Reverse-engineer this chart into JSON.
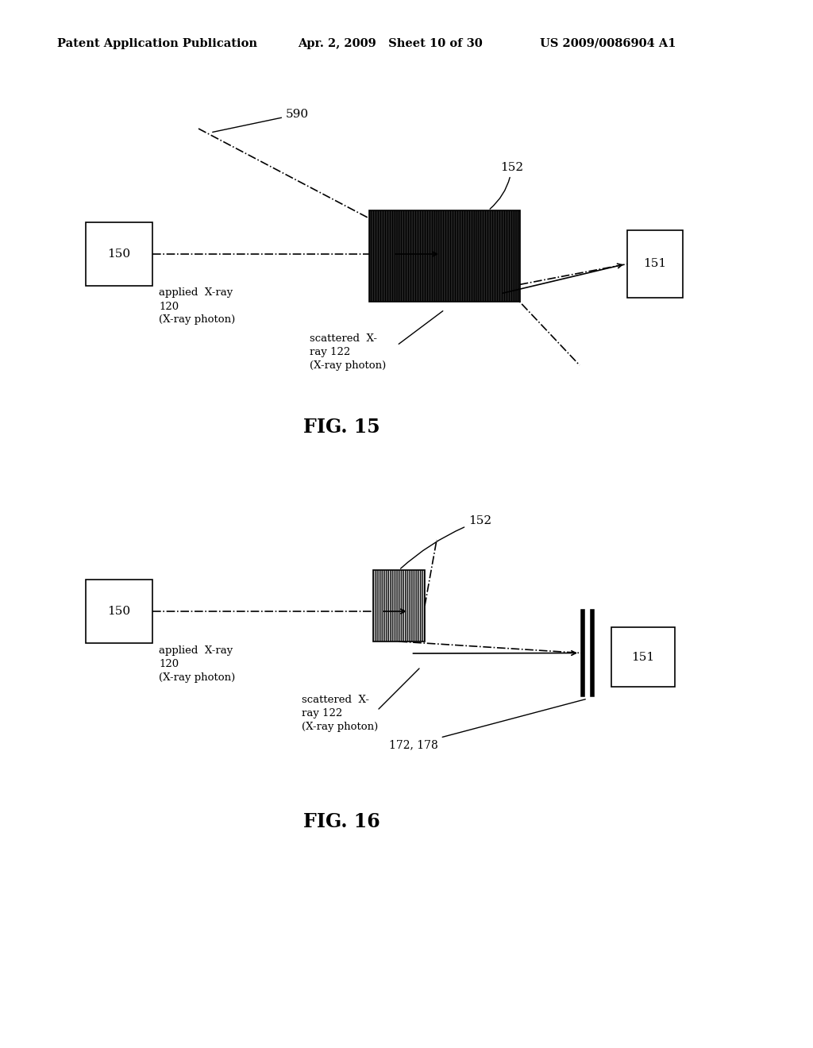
{
  "bg_color": "#ffffff",
  "header_left": "Patent Application Publication",
  "header_mid": "Apr. 2, 2009   Sheet 10 of 30",
  "header_right": "US 2009/0086904 A1",
  "fig15_title": "FIG. 15",
  "fig16_title": "FIG. 16"
}
